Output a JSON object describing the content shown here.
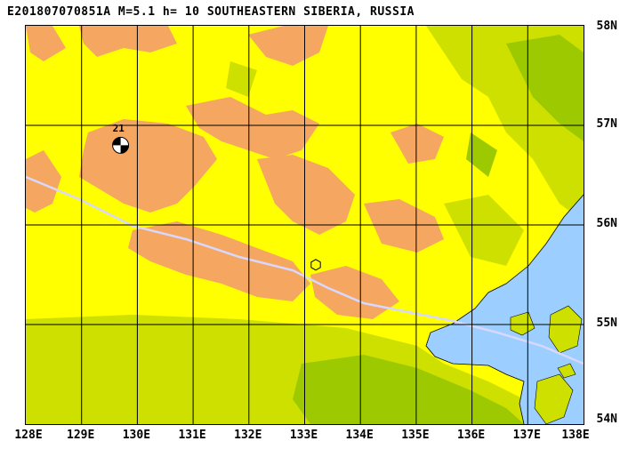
{
  "title": "E201807070851A M=5.1 h= 10 SOUTHEASTERN SIBERIA, RUSSIA",
  "map": {
    "lon_range": [
      128,
      138
    ],
    "lat_range": [
      54,
      58
    ],
    "lon_labels": [
      "128E",
      "129E",
      "130E",
      "131E",
      "132E",
      "133E",
      "134E",
      "135E",
      "136E",
      "137E",
      "138E"
    ],
    "lat_labels": [
      "58N",
      "57N",
      "56N",
      "55N",
      "54N"
    ],
    "colors": {
      "high": "#f5a660",
      "mid": "#ffff00",
      "low": "#cde000",
      "lowland": "#9cc900",
      "sea": "#9ccfff",
      "grid": "#000000",
      "route": "#d8d8ff"
    },
    "event": {
      "label": "21",
      "lon": 129.7,
      "lat": 56.8,
      "icon": "focal-mechanism-beachball-icon"
    },
    "station": {
      "lon": 133.2,
      "lat": 55.6,
      "icon": "hexagon-station-icon"
    }
  }
}
